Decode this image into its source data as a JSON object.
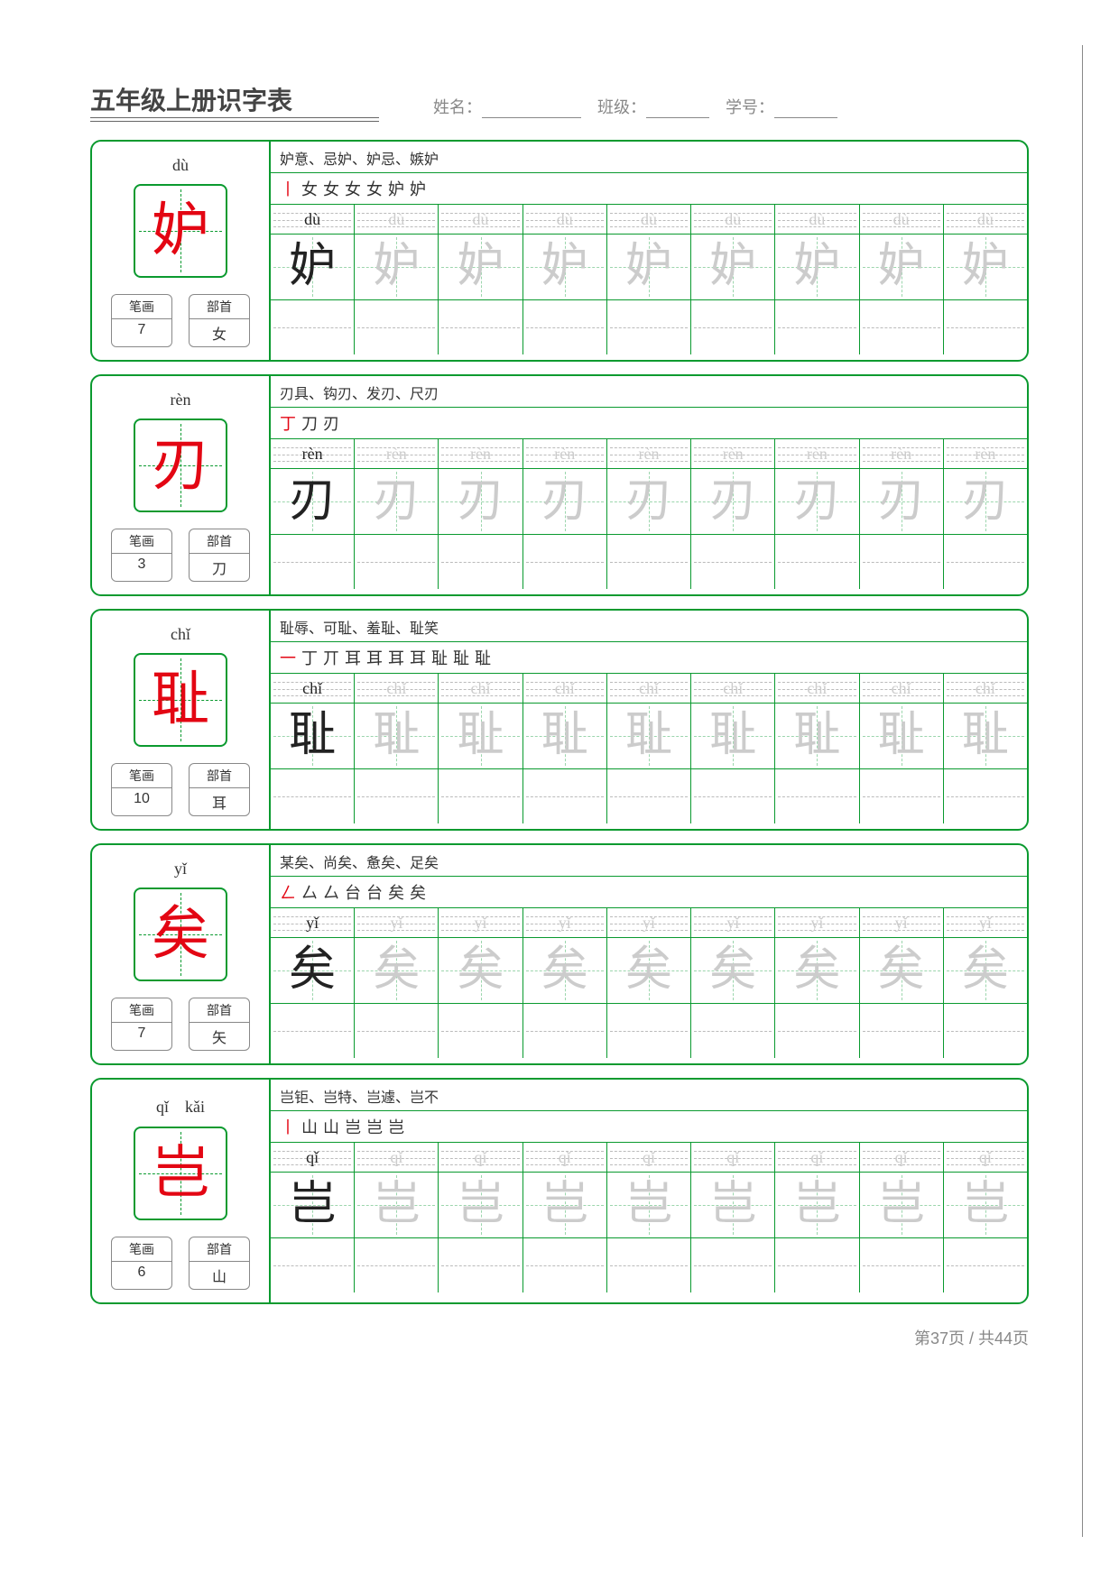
{
  "title": "五年级上册识字表",
  "form": {
    "name_label": "姓名：",
    "class_label": "班级：",
    "id_label": "学号："
  },
  "meta_labels": {
    "strokes": "笔画",
    "radical": "部首"
  },
  "grid_columns": 9,
  "colors": {
    "border": "#0a9a2f",
    "dashed": "#9cd6ad",
    "red": "#e30613",
    "gray_text": "#888",
    "trace_gray": "#cccccc"
  },
  "characters": [
    {
      "char": "妒",
      "pinyin": "dù",
      "strokes": "7",
      "radical": "女",
      "words": "妒意、忌妒、妒忌、嫉妒",
      "stroke_seq": [
        "丨",
        "女",
        "女",
        "女",
        "女",
        "妒",
        "妒"
      ],
      "stroke_red_count": 1
    },
    {
      "char": "刃",
      "pinyin": "rèn",
      "strokes": "3",
      "radical": "刀",
      "words": "刃具、钩刃、发刃、尺刃",
      "stroke_seq": [
        "丁",
        "刀",
        "刃"
      ],
      "stroke_red_count": 1
    },
    {
      "char": "耻",
      "pinyin": "chǐ",
      "strokes": "10",
      "radical": "耳",
      "words": "耻辱、可耻、羞耻、耻笑",
      "stroke_seq": [
        "一",
        "丁",
        "丌",
        "耳",
        "耳",
        "耳",
        "耳",
        "耻",
        "耻",
        "耻"
      ],
      "stroke_red_count": 1
    },
    {
      "char": "矣",
      "pinyin": "yǐ",
      "strokes": "7",
      "radical": "矢",
      "words": "某矣、尚矣、惫矣、足矣",
      "stroke_seq": [
        "ㄥ",
        "厶",
        "厶",
        "台",
        "台",
        "矣",
        "矣"
      ],
      "stroke_red_count": 1
    },
    {
      "char": "岂",
      "pinyin": "qǐ　kǎi",
      "pinyin_cell": "qǐ",
      "strokes": "6",
      "radical": "山",
      "words": "岂钜、岂特、岂遽、岂不",
      "stroke_seq": [
        "丨",
        "山",
        "山",
        "岂",
        "岂",
        "岂"
      ],
      "stroke_red_count": 1
    }
  ],
  "footer": "第37页 / 共44页"
}
